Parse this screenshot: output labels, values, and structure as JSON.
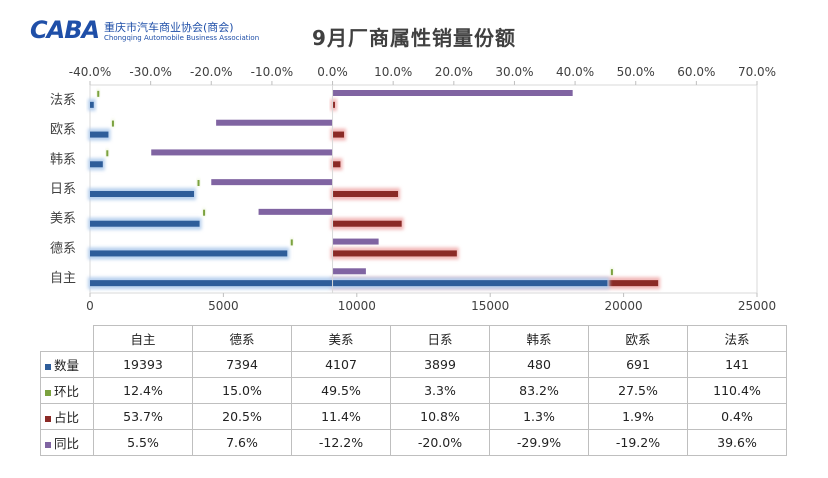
{
  "logo": {
    "mark": "CABA",
    "name_cn": "重庆市汽车商业协会(商会)",
    "name_en": "Chongqing Automobile Business Association"
  },
  "chart_data": {
    "type": "bar",
    "orientation": "horizontal",
    "title": "9月厂商属性销量份额",
    "categories": [
      "自主",
      "德系",
      "美系",
      "日系",
      "韩系",
      "欧系",
      "法系"
    ],
    "series": [
      {
        "name": "数量",
        "axis": "bottom",
        "color": "#2e5d9a",
        "values": [
          19393,
          7394,
          4107,
          3899,
          480,
          691,
          141
        ],
        "labels": [
          "19393",
          "7394",
          "4107",
          "3899",
          "480",
          "691",
          "141"
        ]
      },
      {
        "name": "环比",
        "axis": "top",
        "color": "#7ba23f",
        "values": [
          12.4,
          15.0,
          49.5,
          3.3,
          83.2,
          27.5,
          110.4
        ],
        "labels": [
          "12.4%",
          "15.0%",
          "49.5%",
          "3.3%",
          "83.2%",
          "27.5%",
          "110.4%"
        ]
      },
      {
        "name": "占比",
        "axis": "top",
        "color": "#8b2a26",
        "values": [
          53.7,
          20.5,
          11.4,
          10.8,
          1.3,
          1.9,
          0.4
        ],
        "labels": [
          "53.7%",
          "20.5%",
          "11.4%",
          "10.8%",
          "1.3%",
          "1.9%",
          "0.4%"
        ]
      },
      {
        "name": "同比",
        "axis": "top",
        "color": "#8064a2",
        "values": [
          5.5,
          7.6,
          -12.2,
          -20.0,
          -29.9,
          -19.2,
          39.6
        ],
        "labels": [
          "5.5%",
          "7.6%",
          "-12.2%",
          "-20.0%",
          "-29.9%",
          "-19.2%",
          "39.6%"
        ]
      }
    ],
    "top_axis": {
      "min": -40,
      "max": 70,
      "ticks": [
        "-40.0%",
        "-30.0%",
        "-20.0%",
        "-10.0%",
        "0.0%",
        "10.0%",
        "20.0%",
        "30.0%",
        "40.0%",
        "50.0%",
        "60.0%",
        "70.0%"
      ]
    },
    "bottom_axis": {
      "min": 0,
      "max": 25000,
      "ticks": [
        "0",
        "5000",
        "10000",
        "15000",
        "20000",
        "25000"
      ]
    },
    "legend": "table-below"
  }
}
